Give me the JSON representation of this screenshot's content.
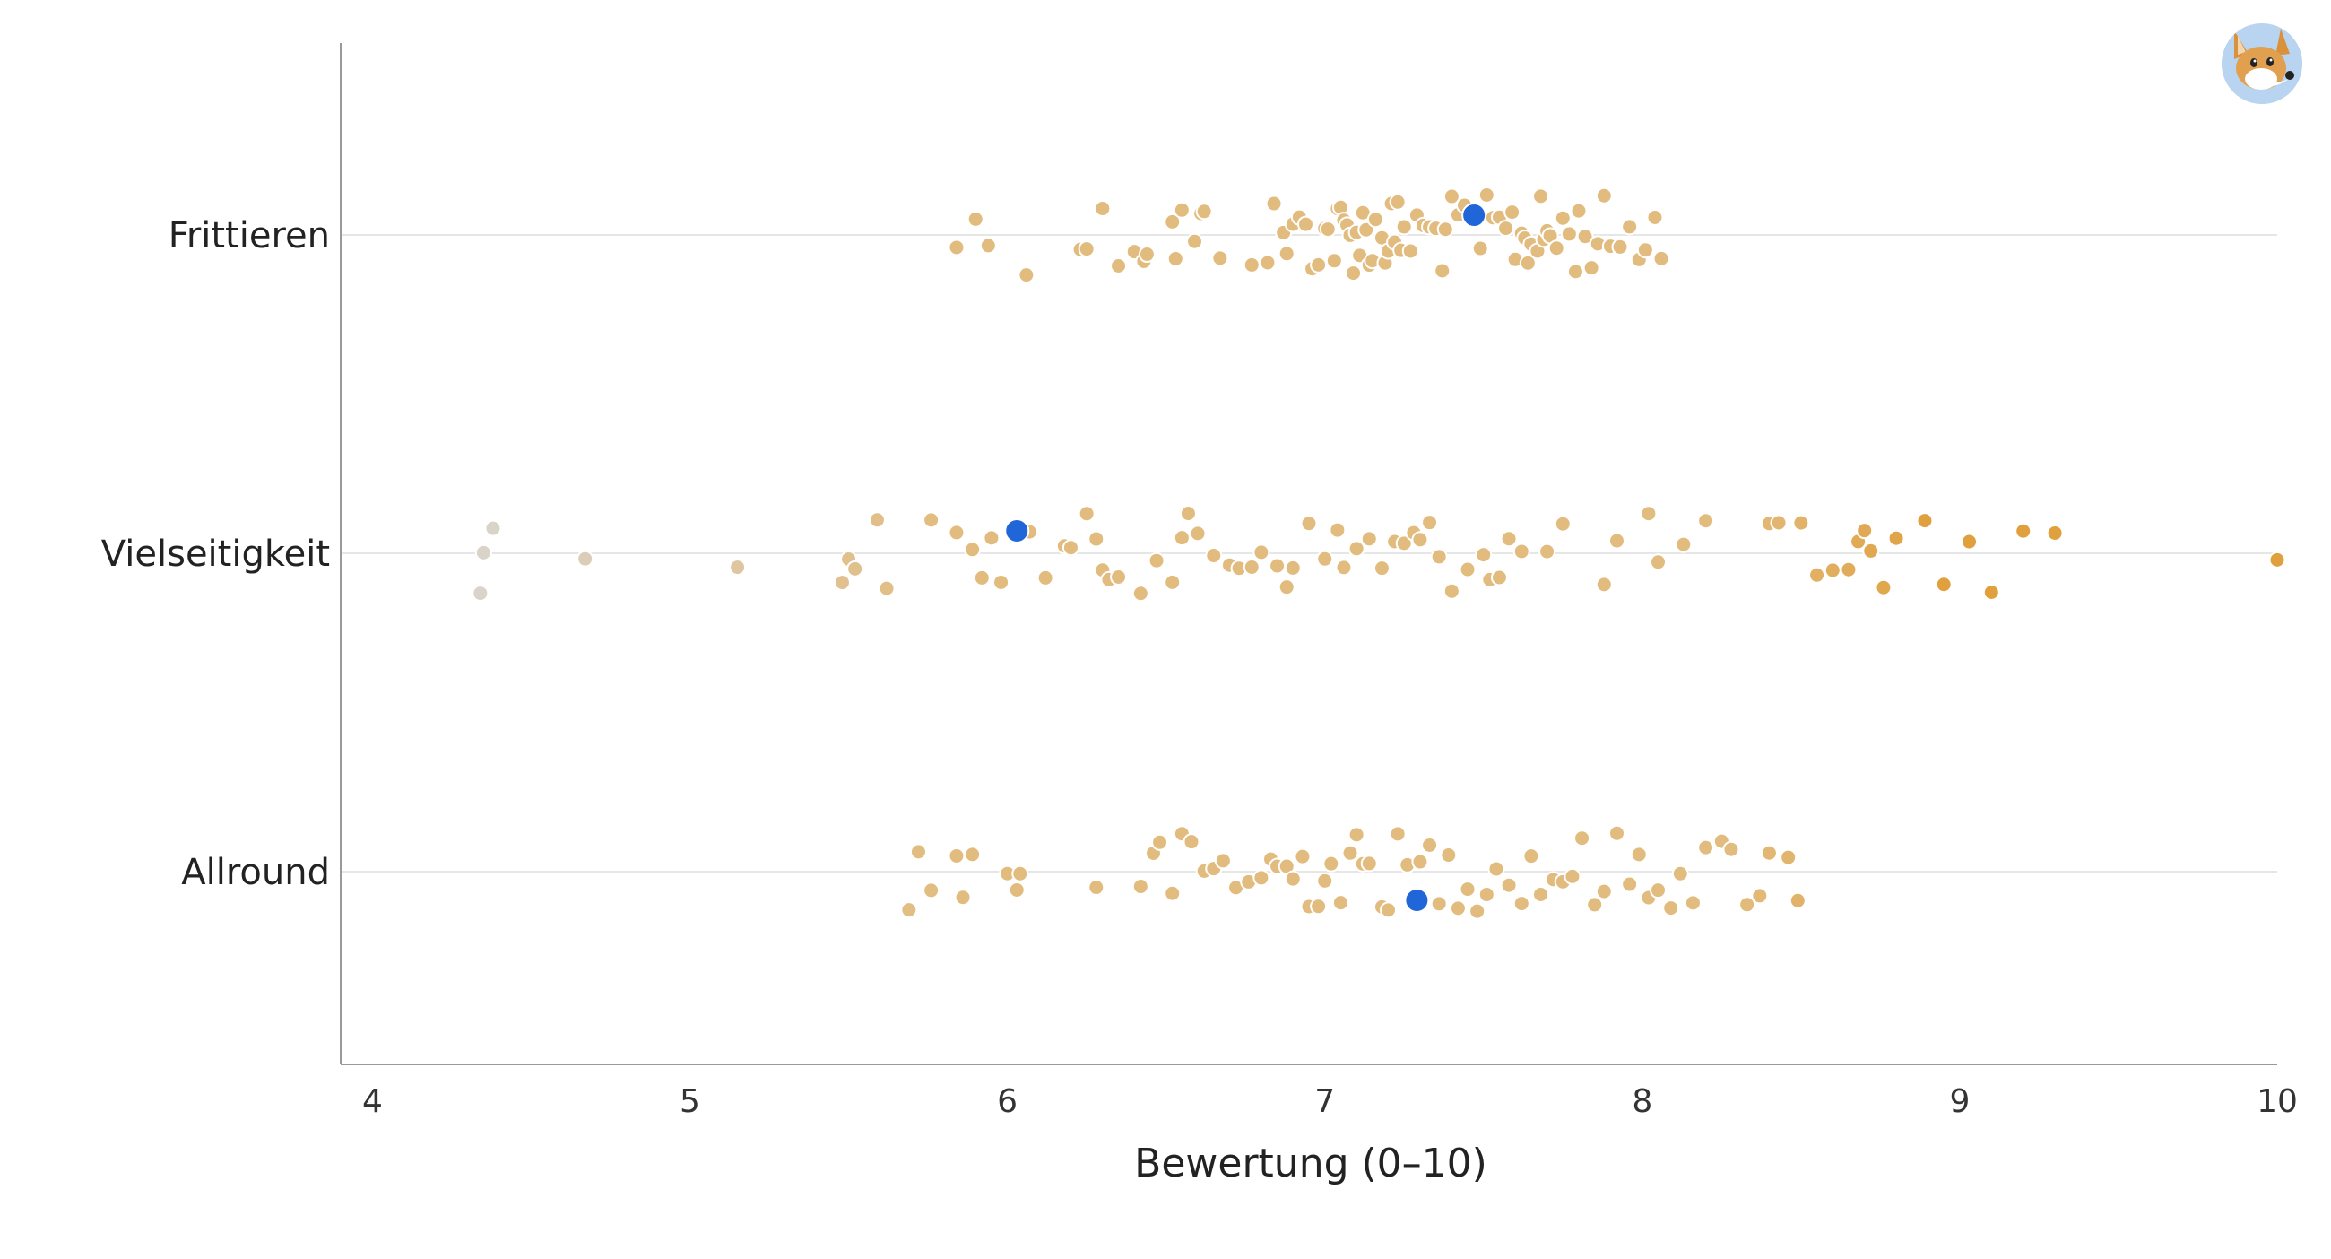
{
  "chart_data": {
    "type": "scatter",
    "title": "",
    "xlabel": "Bewertung (0–10)",
    "ylabel": "",
    "xlim": [
      3.9,
      10
    ],
    "x_ticks": [
      4,
      5,
      6,
      7,
      8,
      9,
      10
    ],
    "x_tick_labels": [
      "4",
      "5",
      "6",
      "7",
      "8",
      "9",
      "10"
    ],
    "categories": [
      "Frittieren",
      "Vielseitigkeit",
      "Allround"
    ],
    "grid": "horizontal lines at categories",
    "legend": "none",
    "series": [
      {
        "name": "Frittieren",
        "highlight": 7.47,
        "values": [
          5.84,
          5.9,
          5.94,
          6.06,
          6.23,
          6.25,
          6.3,
          6.35,
          6.4,
          6.43,
          6.44,
          6.52,
          6.53,
          6.55,
          6.59,
          6.61,
          6.62,
          6.67,
          6.77,
          6.82,
          6.84,
          6.87,
          6.88,
          6.9,
          6.92,
          6.94,
          6.96,
          6.98,
          7.0,
          7.01,
          7.03,
          7.04,
          7.05,
          7.06,
          7.07,
          7.08,
          7.09,
          7.1,
          7.11,
          7.12,
          7.13,
          7.14,
          7.15,
          7.16,
          7.18,
          7.19,
          7.2,
          7.21,
          7.22,
          7.23,
          7.24,
          7.25,
          7.27,
          7.29,
          7.31,
          7.33,
          7.35,
          7.37,
          7.38,
          7.4,
          7.42,
          7.44,
          7.49,
          7.51,
          7.53,
          7.55,
          7.57,
          7.59,
          7.6,
          7.62,
          7.63,
          7.64,
          7.65,
          7.67,
          7.68,
          7.69,
          7.7,
          7.71,
          7.73,
          7.75,
          7.77,
          7.79,
          7.8,
          7.82,
          7.84,
          7.86,
          7.88,
          7.9,
          7.93,
          7.96,
          7.99,
          8.01,
          8.04,
          8.06
        ]
      },
      {
        "name": "Vielseitigkeit",
        "highlight": 6.03,
        "values": [
          4.34,
          4.35,
          4.38,
          4.67,
          5.15,
          5.48,
          5.5,
          5.52,
          5.59,
          5.62,
          5.76,
          5.84,
          5.89,
          5.92,
          5.95,
          5.98,
          6.07,
          6.12,
          6.18,
          6.2,
          6.25,
          6.28,
          6.3,
          6.32,
          6.35,
          6.42,
          6.47,
          6.52,
          6.55,
          6.57,
          6.6,
          6.65,
          6.7,
          6.73,
          6.77,
          6.8,
          6.85,
          6.88,
          6.9,
          6.95,
          7.0,
          7.04,
          7.06,
          7.1,
          7.14,
          7.18,
          7.22,
          7.25,
          7.28,
          7.3,
          7.33,
          7.36,
          7.4,
          7.45,
          7.5,
          7.52,
          7.55,
          7.58,
          7.62,
          7.7,
          7.75,
          7.88,
          7.92,
          8.02,
          8.05,
          8.13,
          8.2,
          8.4,
          8.43,
          8.5,
          8.55,
          8.6,
          8.65,
          8.68,
          8.7,
          8.72,
          8.76,
          8.8,
          8.89,
          8.95,
          9.03,
          9.1,
          9.2,
          9.3,
          10.0
        ]
      },
      {
        "name": "Allround",
        "highlight": 7.29,
        "values": [
          5.69,
          5.72,
          5.76,
          5.84,
          5.86,
          5.89,
          6.0,
          6.03,
          6.04,
          6.28,
          6.42,
          6.46,
          6.48,
          6.52,
          6.55,
          6.58,
          6.62,
          6.65,
          6.68,
          6.72,
          6.76,
          6.8,
          6.83,
          6.85,
          6.88,
          6.9,
          6.93,
          6.95,
          6.98,
          7.0,
          7.02,
          7.05,
          7.08,
          7.1,
          7.12,
          7.14,
          7.18,
          7.2,
          7.23,
          7.26,
          7.3,
          7.33,
          7.36,
          7.39,
          7.42,
          7.45,
          7.48,
          7.51,
          7.54,
          7.58,
          7.62,
          7.65,
          7.68,
          7.72,
          7.75,
          7.78,
          7.81,
          7.85,
          7.88,
          7.92,
          7.96,
          7.99,
          8.02,
          8.05,
          8.09,
          8.12,
          8.16,
          8.2,
          8.25,
          8.28,
          8.33,
          8.37,
          8.4,
          8.46,
          8.49
        ]
      }
    ]
  },
  "logo": {
    "name": "fox-mascot"
  },
  "colors": {
    "highlight": "#2166d9",
    "point_low": "#d9d4cc",
    "point_mid": "#e2bc7e",
    "point_high": "#e0a03e",
    "gridline": "#e6e6e6",
    "axis": "#999999"
  }
}
